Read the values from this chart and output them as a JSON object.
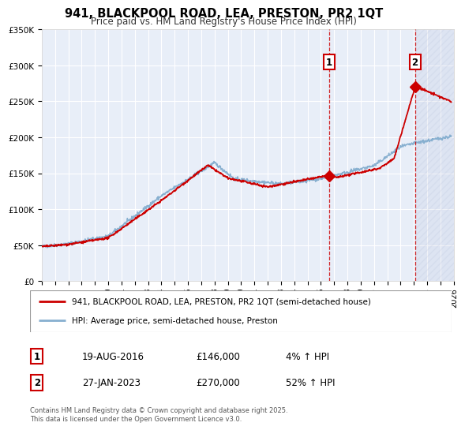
{
  "title": "941, BLACKPOOL ROAD, LEA, PRESTON, PR2 1QT",
  "subtitle": "Price paid vs. HM Land Registry's House Price Index (HPI)",
  "ylim": [
    0,
    350000
  ],
  "xlim": [
    1995,
    2026
  ],
  "background_color": "#ffffff",
  "plot_bg_color": "#e8eef8",
  "grid_color": "#ffffff",
  "red_line_color": "#cc0000",
  "blue_line_color": "#88b0d0",
  "marker1_date": 2016.64,
  "marker1_value": 146000,
  "marker2_date": 2023.08,
  "marker2_value": 270000,
  "legend_line1": "941, BLACKPOOL ROAD, LEA, PRESTON, PR2 1QT (semi-detached house)",
  "legend_line2": "HPI: Average price, semi-detached house, Preston",
  "annotation1_date": "19-AUG-2016",
  "annotation1_price": "£146,000",
  "annotation1_hpi": "4% ↑ HPI",
  "annotation2_date": "27-JAN-2023",
  "annotation2_price": "£270,000",
  "annotation2_hpi": "52% ↑ HPI",
  "footnote1": "Contains HM Land Registry data © Crown copyright and database right 2025.",
  "footnote2": "This data is licensed under the Open Government Licence v3.0.",
  "yticks": [
    0,
    50000,
    100000,
    150000,
    200000,
    250000,
    300000,
    350000
  ],
  "ytick_labels": [
    "£0",
    "£50K",
    "£100K",
    "£150K",
    "£200K",
    "£250K",
    "£300K",
    "£350K"
  ],
  "xticks": [
    1995,
    1996,
    1997,
    1998,
    1999,
    2000,
    2001,
    2002,
    2003,
    2004,
    2005,
    2006,
    2007,
    2008,
    2009,
    2010,
    2011,
    2012,
    2013,
    2014,
    2015,
    2016,
    2017,
    2018,
    2019,
    2020,
    2021,
    2022,
    2023,
    2024,
    2025,
    2026
  ]
}
